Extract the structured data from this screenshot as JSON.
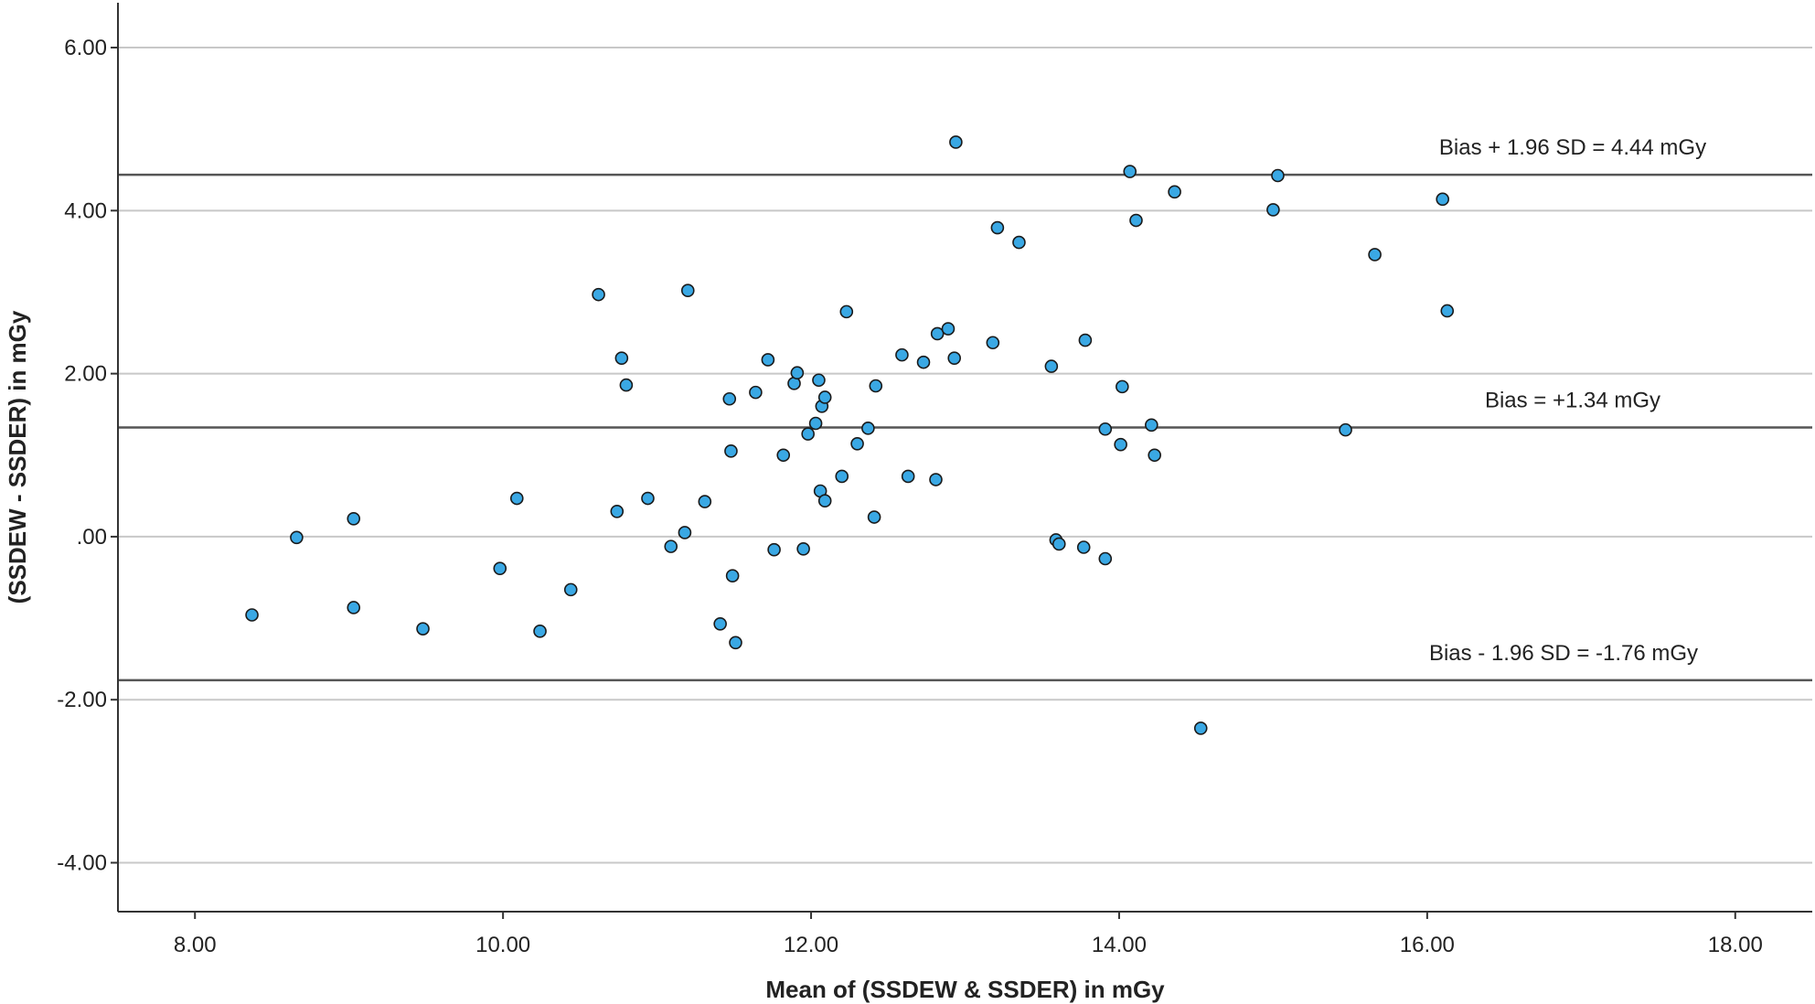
{
  "chart_data": {
    "type": "scatter",
    "xlabel": "Mean of (SSDEW & SSDER) in mGy",
    "ylabel": "(SSDEW - SSDER) in mGy",
    "xlim": [
      7.5,
      18.5
    ],
    "ylim": [
      -4.6,
      6.55
    ],
    "x_ticks": [
      8,
      10,
      12,
      14,
      16,
      18
    ],
    "x_tick_labels": [
      "8.00",
      "10.00",
      "12.00",
      "14.00",
      "16.00",
      "18.00"
    ],
    "y_ticks": [
      6,
      4,
      2,
      0,
      -2,
      -4
    ],
    "y_tick_labels": [
      "6.00",
      "4.00",
      "2.00",
      ".00",
      "-2.00",
      "-4.00"
    ],
    "grid": "horizontal",
    "point_color": "#3aa8e4",
    "reference_lines": [
      {
        "y": 4.44,
        "label": "Bias + 1.96 SD = 4.44 mGy"
      },
      {
        "y": 1.34,
        "label": "Bias = +1.34 mGy"
      },
      {
        "y": -1.76,
        "label": "Bias - 1.96 SD = -1.76 mGy"
      }
    ],
    "points": [
      [
        8.37,
        -0.96
      ],
      [
        8.66,
        -0.01
      ],
      [
        9.03,
        0.22
      ],
      [
        9.03,
        -0.87
      ],
      [
        9.48,
        -1.13
      ],
      [
        9.98,
        -0.39
      ],
      [
        10.09,
        0.47
      ],
      [
        10.24,
        -1.16
      ],
      [
        10.44,
        -0.65
      ],
      [
        10.62,
        2.97
      ],
      [
        10.74,
        0.31
      ],
      [
        10.77,
        2.19
      ],
      [
        10.8,
        1.86
      ],
      [
        10.94,
        0.47
      ],
      [
        11.09,
        -0.12
      ],
      [
        11.18,
        0.05
      ],
      [
        11.2,
        3.02
      ],
      [
        11.31,
        0.43
      ],
      [
        11.41,
        -1.07
      ],
      [
        11.47,
        1.69
      ],
      [
        11.48,
        1.05
      ],
      [
        11.49,
        -0.48
      ],
      [
        11.51,
        -1.3
      ],
      [
        11.64,
        1.77
      ],
      [
        11.72,
        2.17
      ],
      [
        11.76,
        -0.16
      ],
      [
        11.82,
        1.0
      ],
      [
        11.89,
        1.88
      ],
      [
        11.91,
        2.01
      ],
      [
        11.95,
        -0.15
      ],
      [
        11.98,
        1.26
      ],
      [
        12.03,
        1.39
      ],
      [
        12.05,
        1.92
      ],
      [
        12.06,
        0.56
      ],
      [
        12.07,
        1.6
      ],
      [
        12.09,
        0.44
      ],
      [
        12.09,
        1.71
      ],
      [
        12.2,
        0.74
      ],
      [
        12.23,
        2.76
      ],
      [
        12.3,
        1.14
      ],
      [
        12.37,
        1.33
      ],
      [
        12.41,
        0.24
      ],
      [
        12.42,
        1.85
      ],
      [
        12.59,
        2.23
      ],
      [
        12.63,
        0.74
      ],
      [
        12.73,
        2.14
      ],
      [
        12.81,
        0.7
      ],
      [
        12.82,
        2.49
      ],
      [
        12.89,
        2.55
      ],
      [
        12.93,
        2.19
      ],
      [
        12.94,
        4.84
      ],
      [
        13.18,
        2.38
      ],
      [
        13.21,
        3.79
      ],
      [
        13.35,
        3.61
      ],
      [
        13.56,
        2.09
      ],
      [
        13.59,
        -0.04
      ],
      [
        13.61,
        -0.09
      ],
      [
        13.77,
        -0.13
      ],
      [
        13.78,
        2.41
      ],
      [
        13.91,
        1.32
      ],
      [
        13.91,
        -0.27
      ],
      [
        14.01,
        1.13
      ],
      [
        14.02,
        1.84
      ],
      [
        14.07,
        4.48
      ],
      [
        14.11,
        3.88
      ],
      [
        14.21,
        1.37
      ],
      [
        14.23,
        1.0
      ],
      [
        14.36,
        4.23
      ],
      [
        14.53,
        -2.35
      ],
      [
        15.0,
        4.01
      ],
      [
        15.03,
        4.43
      ],
      [
        15.47,
        1.31
      ],
      [
        15.66,
        3.46
      ],
      [
        16.1,
        4.14
      ],
      [
        16.13,
        2.77
      ]
    ]
  }
}
